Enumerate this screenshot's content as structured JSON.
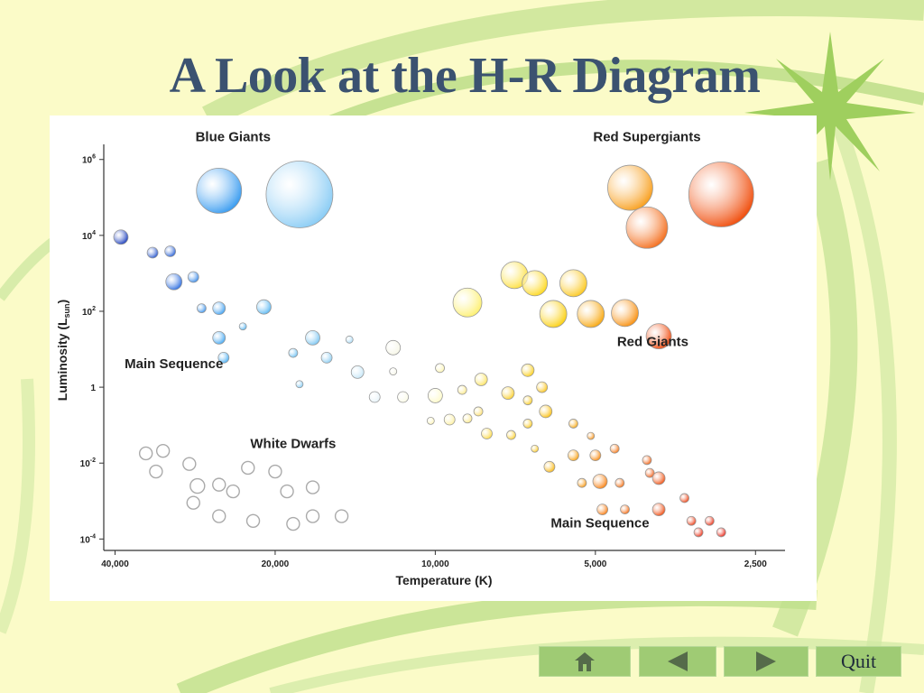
{
  "slide": {
    "title": "A Look at the H-R Diagram"
  },
  "navigation": {
    "home_icon": "home-icon",
    "back_icon": "triangle-left-icon",
    "forward_icon": "triangle-right-icon",
    "quit_label": "Quit",
    "button_color": "#9fcb74"
  },
  "chart_data": {
    "type": "scatter",
    "title": "",
    "xlabel": "Temperature (K)",
    "ylabel": "Luminosity (L",
    "ylabel_sub": "sun",
    "ylabel_close": ")",
    "x_scale": "log-reversed",
    "y_scale": "log",
    "x_ticks": [
      {
        "value": 40000,
        "label": "40,000"
      },
      {
        "value": 20000,
        "label": "20,000"
      },
      {
        "value": 10000,
        "label": "10,000"
      },
      {
        "value": 5000,
        "label": "5,000"
      },
      {
        "value": 2500,
        "label": "2,500"
      }
    ],
    "y_ticks": [
      {
        "value": 1000000,
        "base": "10",
        "exp": "6"
      },
      {
        "value": 10000,
        "base": "10",
        "exp": "4"
      },
      {
        "value": 100,
        "base": "10",
        "exp": "2"
      },
      {
        "value": 1,
        "base": "1",
        "exp": ""
      },
      {
        "value": 0.01,
        "base": "10",
        "exp": "-2"
      },
      {
        "value": 0.0001,
        "base": "10",
        "exp": "-4"
      }
    ],
    "xlim": [
      42000,
      2200
    ],
    "ylim": [
      5e-05,
      2500000
    ],
    "grid": false,
    "legend": "none",
    "region_labels": [
      {
        "text": "Blue Giants",
        "x": 24000,
        "y": 3000000
      },
      {
        "text": "Red Supergiants",
        "x": 4000,
        "y": 3000000
      },
      {
        "text": "Red Giants",
        "x": 3900,
        "y": 12
      },
      {
        "text": "Main Sequence",
        "x": 31000,
        "y": 3.2
      },
      {
        "text": "White Dwarfs",
        "x": 18500,
        "y": 0.025
      },
      {
        "text": "Main Sequence",
        "x": 4900,
        "y": 0.0002
      }
    ],
    "series": [
      {
        "name": "Main Sequence",
        "points": [
          {
            "t": 39000,
            "l": 9000,
            "r": 8,
            "c": "#1a3dbd"
          },
          {
            "t": 34000,
            "l": 3500,
            "r": 6,
            "c": "#2655cc"
          },
          {
            "t": 31500,
            "l": 3800,
            "r": 6,
            "c": "#2a62d6"
          },
          {
            "t": 31000,
            "l": 600,
            "r": 9,
            "c": "#2f6fe0"
          },
          {
            "t": 28500,
            "l": 800,
            "r": 6,
            "c": "#3a8ae8"
          },
          {
            "t": 27500,
            "l": 120,
            "r": 5,
            "c": "#3a92ec"
          },
          {
            "t": 25500,
            "l": 120,
            "r": 7,
            "c": "#40a0f0"
          },
          {
            "t": 25500,
            "l": 20,
            "r": 7,
            "c": "#45a8f2"
          },
          {
            "t": 25000,
            "l": 6,
            "r": 6,
            "c": "#4aaef2"
          },
          {
            "t": 23000,
            "l": 40,
            "r": 4,
            "c": "#55b5f2"
          },
          {
            "t": 21000,
            "l": 130,
            "r": 8,
            "c": "#5ab8f2"
          },
          {
            "t": 18500,
            "l": 8,
            "r": 5,
            "c": "#6dc0f2"
          },
          {
            "t": 17000,
            "l": 20,
            "r": 8,
            "c": "#7cc6f2"
          },
          {
            "t": 18000,
            "l": 1.2,
            "r": 4,
            "c": "#80c8f2"
          },
          {
            "t": 16000,
            "l": 6,
            "r": 6,
            "c": "#8ccdf2"
          },
          {
            "t": 14500,
            "l": 18,
            "r": 4,
            "c": "#a6d9f6"
          },
          {
            "t": 14000,
            "l": 2.5,
            "r": 7,
            "c": "#c6e7f8"
          },
          {
            "t": 13000,
            "l": 0.55,
            "r": 6,
            "c": "#e6f2f8"
          },
          {
            "t": 12000,
            "l": 11,
            "r": 8,
            "c": "#f6f6e6"
          },
          {
            "t": 12000,
            "l": 2.6,
            "r": 4,
            "c": "#f4f4e6"
          },
          {
            "t": 11500,
            "l": 0.55,
            "r": 6,
            "c": "#fafae6"
          },
          {
            "t": 10000,
            "l": 0.6,
            "r": 8,
            "c": "#fdfac8"
          },
          {
            "t": 9800,
            "l": 3.2,
            "r": 5,
            "c": "#fdf5b0"
          },
          {
            "t": 10200,
            "l": 0.13,
            "r": 4,
            "c": "#fdf4b6"
          },
          {
            "t": 9400,
            "l": 0.14,
            "r": 6,
            "c": "#fdf0a0"
          },
          {
            "t": 8900,
            "l": 0.85,
            "r": 5,
            "c": "#fdea8a"
          },
          {
            "t": 8700,
            "l": 0.15,
            "r": 5,
            "c": "#fde88a"
          },
          {
            "t": 8200,
            "l": 1.6,
            "r": 7,
            "c": "#fde460"
          },
          {
            "t": 8300,
            "l": 0.23,
            "r": 5,
            "c": "#fde070"
          },
          {
            "t": 8000,
            "l": 0.06,
            "r": 6,
            "c": "#fbd94a"
          },
          {
            "t": 7300,
            "l": 0.7,
            "r": 7,
            "c": "#fbd030"
          },
          {
            "t": 7200,
            "l": 0.055,
            "r": 5,
            "c": "#fbd030"
          },
          {
            "t": 6700,
            "l": 2.8,
            "r": 7,
            "c": "#fbd020"
          },
          {
            "t": 6700,
            "l": 0.45,
            "r": 5,
            "c": "#fbcc20"
          },
          {
            "t": 6700,
            "l": 0.11,
            "r": 5,
            "c": "#fbca20"
          },
          {
            "t": 6500,
            "l": 0.024,
            "r": 4,
            "c": "#fbc820"
          },
          {
            "t": 6300,
            "l": 1.0,
            "r": 6,
            "c": "#fbc418"
          },
          {
            "t": 6200,
            "l": 0.23,
            "r": 7,
            "c": "#fbc010"
          },
          {
            "t": 6100,
            "l": 0.008,
            "r": 6,
            "c": "#fbb810"
          },
          {
            "t": 5500,
            "l": 0.11,
            "r": 5,
            "c": "#f8a810"
          },
          {
            "t": 5500,
            "l": 0.016,
            "r": 6,
            "c": "#f8a010"
          },
          {
            "t": 5300,
            "l": 0.003,
            "r": 5,
            "c": "#f89810"
          },
          {
            "t": 5100,
            "l": 0.052,
            "r": 4,
            "c": "#f89010"
          },
          {
            "t": 5000,
            "l": 0.016,
            "r": 6,
            "c": "#f88a10"
          },
          {
            "t": 4900,
            "l": 0.0033,
            "r": 8,
            "c": "#f88010"
          },
          {
            "t": 4850,
            "l": 0.0006,
            "r": 6,
            "c": "#f87c10"
          },
          {
            "t": 4600,
            "l": 0.024,
            "r": 5,
            "c": "#f67410"
          },
          {
            "t": 4500,
            "l": 0.003,
            "r": 5,
            "c": "#f46e10"
          },
          {
            "t": 4400,
            "l": 0.0006,
            "r": 5,
            "c": "#f46a10"
          },
          {
            "t": 4000,
            "l": 0.012,
            "r": 5,
            "c": "#f26010"
          },
          {
            "t": 3950,
            "l": 0.0055,
            "r": 5,
            "c": "#f25a10"
          },
          {
            "t": 3800,
            "l": 0.004,
            "r": 7,
            "c": "#f05010"
          },
          {
            "t": 3800,
            "l": 0.0006,
            "r": 7,
            "c": "#f04c10"
          },
          {
            "t": 3400,
            "l": 0.0012,
            "r": 5,
            "c": "#ee4010"
          },
          {
            "t": 3300,
            "l": 0.0003,
            "r": 5,
            "c": "#ee3810"
          },
          {
            "t": 3050,
            "l": 0.0003,
            "r": 5,
            "c": "#ec2c10"
          },
          {
            "t": 3200,
            "l": 0.00015,
            "r": 5,
            "c": "#ec2a10"
          },
          {
            "t": 2900,
            "l": 0.00015,
            "r": 5,
            "c": "#ea2010"
          }
        ]
      },
      {
        "name": "Blue Giants",
        "points": [
          {
            "t": 25500,
            "l": 150000,
            "r": 25,
            "c": "#3a9cf0"
          },
          {
            "t": 18000,
            "l": 120000,
            "r": 37,
            "c": "#8ccdf5"
          }
        ]
      },
      {
        "name": "Red Supergiants",
        "points": [
          {
            "t": 4300,
            "l": 180000,
            "r": 25,
            "c": "#f8a020"
          },
          {
            "t": 2900,
            "l": 120000,
            "r": 36,
            "c": "#f05010"
          },
          {
            "t": 4000,
            "l": 16000,
            "r": 23,
            "c": "#f47020"
          }
        ]
      },
      {
        "name": "Red Giants",
        "points": [
          {
            "t": 8700,
            "l": 170,
            "r": 16,
            "c": "#fdf070"
          },
          {
            "t": 7100,
            "l": 900,
            "r": 15,
            "c": "#fde040"
          },
          {
            "t": 6500,
            "l": 550,
            "r": 14,
            "c": "#fdd820"
          },
          {
            "t": 5500,
            "l": 550,
            "r": 15,
            "c": "#fbc820"
          },
          {
            "t": 6000,
            "l": 85,
            "r": 15,
            "c": "#fbd010"
          },
          {
            "t": 5100,
            "l": 85,
            "r": 15,
            "c": "#f8a810"
          },
          {
            "t": 4400,
            "l": 90,
            "r": 15,
            "c": "#f89010"
          },
          {
            "t": 3800,
            "l": 22,
            "r": 14,
            "c": "#f04c10"
          }
        ]
      },
      {
        "name": "White Dwarfs",
        "points": [
          {
            "t": 35000,
            "l": 0.018,
            "r": 7,
            "c": "#ffffff"
          },
          {
            "t": 32500,
            "l": 0.021,
            "r": 7,
            "c": "#ffffff"
          },
          {
            "t": 33500,
            "l": 0.006,
            "r": 7,
            "c": "#ffffff"
          },
          {
            "t": 29000,
            "l": 0.0095,
            "r": 7,
            "c": "#ffffff"
          },
          {
            "t": 28000,
            "l": 0.0025,
            "r": 8,
            "c": "#ffffff"
          },
          {
            "t": 28500,
            "l": 0.0009,
            "r": 7,
            "c": "#ffffff"
          },
          {
            "t": 25500,
            "l": 0.0027,
            "r": 7,
            "c": "#ffffff"
          },
          {
            "t": 25500,
            "l": 0.0004,
            "r": 7,
            "c": "#ffffff"
          },
          {
            "t": 24000,
            "l": 0.0018,
            "r": 7,
            "c": "#ffffff"
          },
          {
            "t": 22500,
            "l": 0.0075,
            "r": 7,
            "c": "#ffffff"
          },
          {
            "t": 20000,
            "l": 0.006,
            "r": 7,
            "c": "#ffffff"
          },
          {
            "t": 22000,
            "l": 0.0003,
            "r": 7,
            "c": "#ffffff"
          },
          {
            "t": 19000,
            "l": 0.0018,
            "r": 7,
            "c": "#ffffff"
          },
          {
            "t": 18500,
            "l": 0.00025,
            "r": 7,
            "c": "#ffffff"
          },
          {
            "t": 17000,
            "l": 0.0023,
            "r": 7,
            "c": "#ffffff"
          },
          {
            "t": 17000,
            "l": 0.0004,
            "r": 7,
            "c": "#ffffff"
          },
          {
            "t": 15000,
            "l": 0.0004,
            "r": 7,
            "c": "#ffffff"
          }
        ]
      }
    ]
  }
}
